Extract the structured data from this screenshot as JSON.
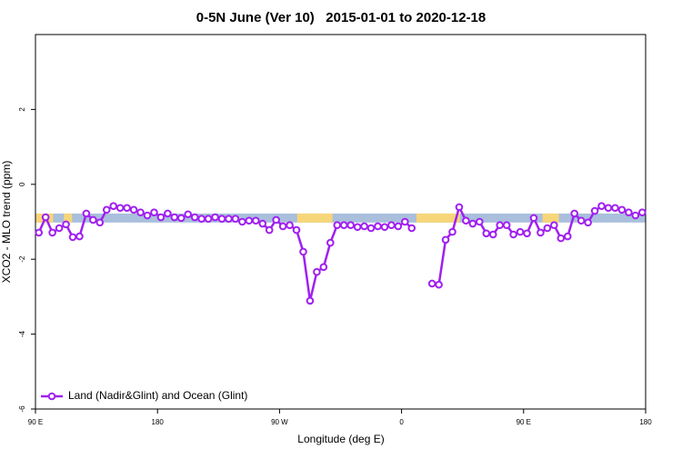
{
  "chart_data": {
    "type": "line",
    "title": "0-5N June (Ver 10)   2015-01-01 to 2020-12-18",
    "xlabel": "Longitude (deg E)",
    "ylabel": "XCO2 - MLO trend (ppm)",
    "xlim": [
      90,
      540
    ],
    "xticks": [
      {
        "value": 90,
        "label": "90 E"
      },
      180,
      {
        "value": 270,
        "label": "90 W"
      },
      {
        "value": 360,
        "label": "0"
      },
      {
        "value": 450,
        "label": "90 E"
      },
      {
        "value": 540,
        "label": "180"
      }
    ],
    "ylim": [
      -6,
      4
    ],
    "yticks": [
      -6,
      -4,
      -2,
      0,
      2
    ],
    "band_ylim": [
      -1.02,
      -0.78
    ],
    "bands": [
      {
        "from": 90,
        "to": 540,
        "color": "#a9bfdc"
      },
      {
        "from": 90,
        "to": 103,
        "color": "#f7d67a"
      },
      {
        "from": 111,
        "to": 117,
        "color": "#f7d67a"
      },
      {
        "from": 283,
        "to": 309,
        "color": "#f7d67a"
      },
      {
        "from": 371,
        "to": 403,
        "color": "#f7d67a"
      },
      {
        "from": 464,
        "to": 476,
        "color": "#f7d67a"
      }
    ],
    "legend": "bottom-left",
    "x": [
      92.5,
      97.5,
      102.5,
      107.5,
      112.5,
      117.5,
      122.5,
      127.5,
      132.5,
      137.5,
      142.5,
      147.5,
      152.5,
      157.5,
      162.5,
      167.5,
      172.5,
      177.5,
      182.5,
      187.5,
      192.5,
      197.5,
      202.5,
      207.5,
      212.5,
      217.5,
      222.5,
      227.5,
      232.5,
      237.5,
      242.5,
      247.5,
      252.5,
      257.5,
      262.5,
      267.5,
      272.5,
      277.5,
      282.5,
      287.5,
      292.5,
      297.5,
      302.5,
      307.5,
      312.5,
      317.5,
      322.5,
      327.5,
      332.5,
      337.5,
      342.5,
      347.5,
      352.5,
      357.5,
      362.5,
      367.5,
      372.5,
      377.5,
      382.5,
      387.5,
      392.5,
      397.5,
      402.5,
      407.5,
      412.5,
      417.5,
      422.5,
      427.5,
      432.5,
      437.5,
      442.5,
      447.5,
      452.5,
      457.5,
      462.5,
      467.5,
      472.5,
      477.5,
      482.5,
      487.5,
      492.5,
      497.5,
      502.5,
      507.5,
      512.5,
      517.5,
      522.5,
      527.5,
      532.5,
      537.5
    ],
    "series": [
      {
        "name": "Land (Nadir&Glint) and Ocean (Glint)",
        "color": "#a020f0",
        "values": [
          -1.29,
          -0.88,
          -1.29,
          -1.17,
          -1.07,
          -1.41,
          -1.39,
          -0.78,
          -0.95,
          -1.02,
          -0.68,
          -0.58,
          -0.63,
          -0.63,
          -0.68,
          -0.75,
          -0.83,
          -0.75,
          -0.88,
          -0.78,
          -0.88,
          -0.9,
          -0.8,
          -0.88,
          -0.92,
          -0.92,
          -0.88,
          -0.92,
          -0.92,
          -0.92,
          -1.0,
          -0.97,
          -0.97,
          -1.05,
          -1.22,
          -0.95,
          -1.12,
          -1.09,
          -1.22,
          -1.8,
          -3.11,
          -2.34,
          -2.21,
          -1.56,
          -1.09,
          -1.09,
          -1.09,
          -1.14,
          -1.12,
          -1.17,
          -1.12,
          -1.14,
          -1.09,
          -1.12,
          -1.0,
          -1.17,
          null,
          null,
          -2.65,
          -2.68,
          -1.48,
          -1.27,
          -0.61,
          -0.97,
          -1.05,
          -1.0,
          -1.31,
          -1.34,
          -1.09,
          -1.09,
          -1.34,
          -1.27,
          -1.31,
          -0.9,
          -1.29,
          -1.17,
          -1.09,
          -1.44,
          -1.39,
          -0.78,
          -0.97,
          -1.02,
          -0.71,
          -0.58,
          -0.63,
          -0.63,
          -0.68,
          -0.75,
          -0.83,
          -0.75
        ]
      }
    ]
  }
}
